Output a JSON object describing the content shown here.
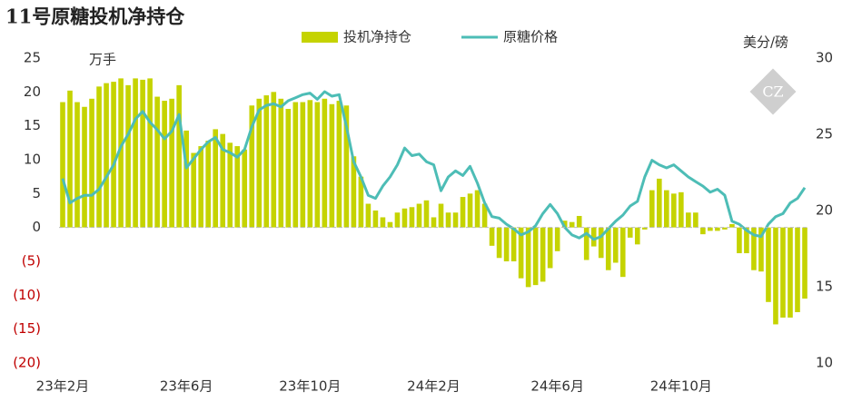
{
  "chart_data": {
    "type": "bar-line",
    "title": "11号原糖投机净持仓",
    "logo": "CZ",
    "y_unit": "万手",
    "y2_unit": "美分/磅",
    "categories": [
      "23年2月",
      null,
      null,
      null,
      null,
      null,
      null,
      null,
      null,
      null,
      null,
      null,
      null,
      null,
      null,
      null,
      null,
      "23年6月",
      null,
      null,
      null,
      null,
      null,
      null,
      null,
      null,
      null,
      null,
      null,
      null,
      null,
      null,
      null,
      null,
      "23年10月",
      null,
      null,
      null,
      null,
      null,
      null,
      null,
      null,
      null,
      null,
      null,
      null,
      null,
      null,
      null,
      null,
      "24年2月",
      null,
      null,
      null,
      null,
      null,
      null,
      null,
      null,
      null,
      null,
      null,
      null,
      null,
      null,
      null,
      null,
      "24年6月",
      null,
      null,
      null,
      null,
      null,
      null,
      null,
      null,
      null,
      null,
      null,
      null,
      null,
      null,
      null,
      null,
      "24年10月",
      null,
      null,
      null,
      null,
      null,
      null,
      null,
      null,
      null,
      null,
      null,
      null,
      null,
      null,
      null,
      null,
      null
    ],
    "series": [
      {
        "name": "投机净持仓",
        "type": "bar",
        "color": "#c5d300",
        "values": [
          18.5,
          20.2,
          18.5,
          17.8,
          19,
          20.8,
          21.3,
          21.5,
          22,
          21,
          22,
          21.8,
          22,
          19.3,
          18.7,
          19,
          21,
          14.3,
          11,
          12,
          12.8,
          14.5,
          13.8,
          12.5,
          12,
          11.5,
          18,
          19,
          19.5,
          20,
          19,
          17.5,
          18.5,
          18.5,
          18.8,
          18.5,
          19,
          18.2,
          18.7,
          18,
          10.5,
          7.5,
          3.5,
          2.5,
          1.5,
          0.8,
          2.2,
          2.8,
          3,
          3.5,
          4,
          1.5,
          3.5,
          2.2,
          2.2,
          4.5,
          5,
          5.5,
          3.5,
          -2.7,
          -4.5,
          -5,
          -5,
          -7.5,
          -8.8,
          -8.5,
          -8,
          -6,
          -3.5,
          1,
          0.8,
          1.7,
          -4.8,
          -2.8,
          -4.5,
          -6.3,
          -5.2,
          -7.3,
          -1.5,
          -2.5,
          -0.3,
          5.5,
          7.2,
          5.5,
          5,
          5.2,
          2.2,
          2.2,
          -1,
          -0.5,
          -0.5,
          -0.3,
          0.5,
          -3.8,
          -3.8,
          -6.3,
          -6.5,
          -11,
          -14.3,
          -13.3,
          -13.3,
          -12.5,
          -10.5
        ]
      },
      {
        "name": "原糖价格",
        "type": "line",
        "axis": "y2",
        "color": "#4dbdb6",
        "values": [
          22.1,
          20.5,
          20.8,
          21.0,
          21.0,
          21.4,
          22.2,
          23.0,
          24.2,
          25.0,
          26.0,
          26.5,
          25.8,
          25.3,
          24.7,
          25.2,
          26.3,
          22.8,
          23.4,
          24.0,
          24.5,
          24.8,
          24.0,
          23.8,
          23.5,
          24.0,
          25.5,
          26.6,
          26.9,
          27.0,
          26.8,
          27.2,
          27.4,
          27.6,
          27.7,
          27.3,
          27.8,
          27.5,
          27.6,
          25.5,
          23.2,
          22.2,
          21.0,
          20.8,
          21.6,
          22.2,
          23.0,
          24.1,
          23.6,
          23.7,
          23.2,
          23.0,
          21.3,
          22.2,
          22.6,
          22.3,
          22.9,
          21.8,
          20.5,
          19.6,
          19.5,
          19.1,
          18.8,
          18.4,
          18.6,
          19.0,
          19.8,
          20.4,
          19.8,
          18.9,
          18.4,
          18.2,
          18.5,
          18.1,
          18.3,
          18.8,
          19.3,
          19.7,
          20.3,
          20.6,
          22.2,
          23.3,
          23.0,
          22.8,
          23.0,
          22.6,
          22.2,
          21.9,
          21.6,
          21.2,
          21.4,
          21.0,
          19.3,
          19.1,
          18.7,
          18.4,
          18.3,
          19.1,
          19.6,
          19.8,
          20.5,
          20.8,
          21.5
        ]
      }
    ],
    "ylim": [
      -20,
      25
    ],
    "yticks": [
      {
        "value": -20,
        "label": "(20)"
      },
      {
        "value": -15,
        "label": "(15)"
      },
      {
        "value": -10,
        "label": "(10)"
      },
      {
        "value": -5,
        "label": "(5)"
      },
      0,
      5,
      10,
      15,
      20,
      25
    ],
    "y2lim": [
      10,
      30
    ],
    "y2ticks": [
      10,
      15,
      20,
      25,
      30
    ],
    "zero_line": true
  }
}
